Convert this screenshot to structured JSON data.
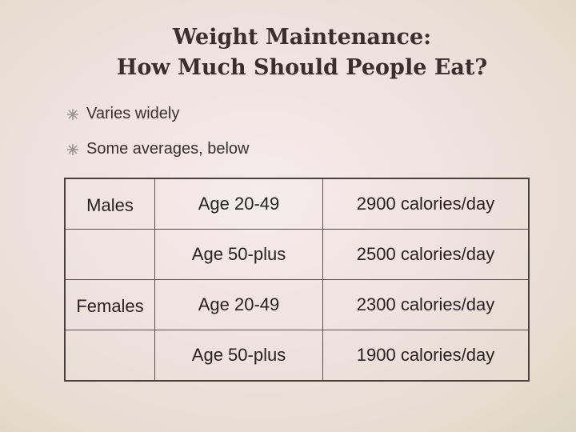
{
  "header": {
    "title_lines": [
      "Weight Maintenance:",
      "How Much Should People Eat?"
    ]
  },
  "bullets": [
    "Varies widely",
    "Some averages, below"
  ],
  "table": {
    "rows": [
      {
        "group": "Males",
        "age": "Age 20-49",
        "calories": "2900 calories/day"
      },
      {
        "age": "Age 50-plus",
        "calories": "2500 calories/day"
      },
      {
        "group": "Females",
        "age": "Age 20-49",
        "calories": "2300 calories/day"
      },
      {
        "age": "Age 50-plus",
        "calories": "1900 calories/day"
      }
    ]
  }
}
